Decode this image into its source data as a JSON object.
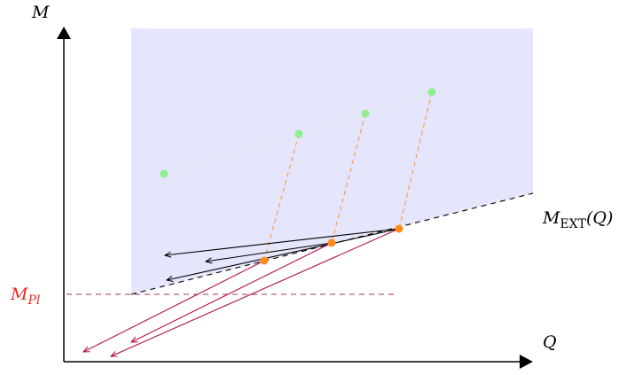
{
  "axes": {
    "y_label": "M",
    "x_label": "Q"
  },
  "labels": {
    "extremal_curve": {
      "main": "M",
      "sub": "EXT",
      "arg": "(Q)"
    },
    "planck_mass": {
      "main": "M",
      "sub": "Pl"
    }
  },
  "colors": {
    "region_fill": "#e5e5fb",
    "axis": "#000000",
    "extremal_line": "#000000",
    "planck_line": "#a0334a",
    "planck_label": "#e8281e",
    "green_points": "#90ee90",
    "green_trail": "#c9f5c9",
    "orange_points": "#ff8c1a",
    "orange_dashes": "#ff9a3c",
    "decay_black": "#000000",
    "decay_crimson": "#b0154a"
  },
  "icons": {
    "y_axis_arrow": "arrowhead-up-icon",
    "x_axis_arrow": "arrowhead-right-icon"
  }
}
